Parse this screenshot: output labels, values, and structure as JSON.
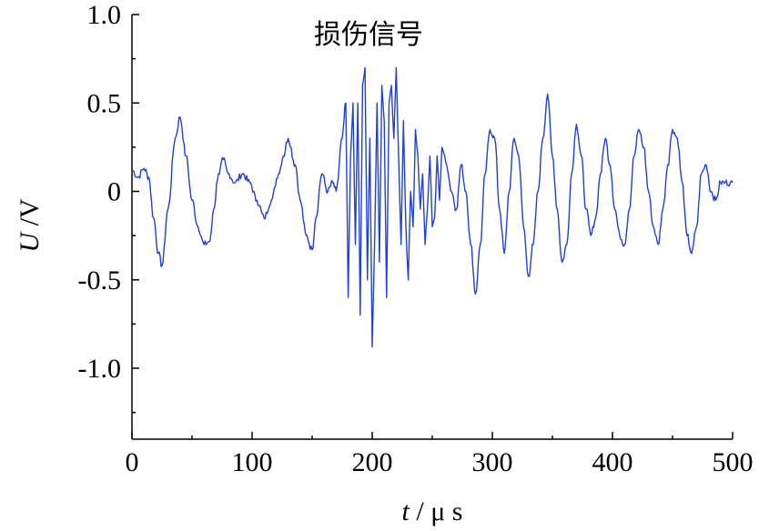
{
  "chart_data": {
    "type": "line",
    "title": "损伤信号",
    "xlabel_var": "t",
    "xlabel_unit": "μ s",
    "ylabel_var": "U",
    "ylabel_unit": "V",
    "xlim": [
      0,
      500
    ],
    "ylim": [
      -1.4,
      1.0
    ],
    "x_ticks": [
      0,
      100,
      200,
      300,
      400,
      500
    ],
    "x_tick_labels": [
      "0",
      "100",
      "200",
      "300",
      "400",
      "500"
    ],
    "y_ticks": [
      1.0,
      0.5,
      0,
      -0.5,
      -1.0
    ],
    "y_tick_labels": [
      "1.0",
      "0.5",
      "0",
      "-0.5",
      "-1.0"
    ],
    "grid": false,
    "series": [
      {
        "color": "#1f3fe0",
        "x": [
          0,
          5,
          10,
          14,
          18,
          22,
          25,
          30,
          36,
          40,
          45,
          50,
          55,
          60,
          65,
          68,
          72,
          76,
          80,
          86,
          92,
          98,
          104,
          110,
          116,
          122,
          126,
          130,
          136,
          140,
          145,
          150,
          153,
          158,
          163,
          167,
          170,
          175,
          178,
          180,
          182,
          184,
          186,
          188,
          190,
          192,
          194,
          196,
          198,
          200,
          202,
          204,
          206,
          208,
          210,
          212,
          214,
          216,
          218,
          220,
          222,
          224,
          226,
          228,
          230,
          232,
          234,
          236,
          238,
          240,
          242,
          244,
          246,
          248,
          250,
          252,
          254,
          256,
          258,
          262,
          266,
          270,
          274,
          278,
          282,
          286,
          290,
          294,
          298,
          302,
          306,
          310,
          314,
          318,
          322,
          326,
          330,
          334,
          338,
          342,
          346,
          350,
          354,
          358,
          362,
          366,
          370,
          374,
          378,
          382,
          386,
          390,
          394,
          398,
          402,
          406,
          410,
          414,
          418,
          422,
          426,
          430,
          434,
          438,
          442,
          446,
          450,
          454,
          458,
          462,
          466,
          470,
          474,
          478,
          482,
          486,
          490,
          494,
          498,
          500
        ],
        "y": [
          0.12,
          0.08,
          0.13,
          0.08,
          -0.15,
          -0.35,
          -0.42,
          -0.1,
          0.3,
          0.42,
          0.2,
          -0.05,
          -0.2,
          -0.3,
          -0.28,
          -0.1,
          0.1,
          0.18,
          0.1,
          0.05,
          0.1,
          0.05,
          -0.05,
          -0.15,
          -0.05,
          0.1,
          0.2,
          0.3,
          0.15,
          -0.05,
          -0.25,
          -0.33,
          -0.15,
          0.1,
          0.0,
          0.05,
          0.0,
          0.3,
          0.5,
          -0.6,
          0.2,
          0.5,
          -0.3,
          0.5,
          -0.7,
          0.6,
          0.7,
          -0.5,
          0.3,
          -0.88,
          -0.3,
          0.5,
          -0.4,
          0.6,
          0.4,
          -0.6,
          0.5,
          0.6,
          0.3,
          0.7,
          0.2,
          -0.3,
          0.4,
          -0.2,
          -0.5,
          0.0,
          -0.2,
          0.35,
          0.2,
          -0.1,
          0.1,
          -0.3,
          -0.1,
          0.2,
          -0.2,
          -0.15,
          0.2,
          -0.05,
          0.25,
          0.15,
          0.0,
          -0.1,
          0.15,
          0.0,
          -0.3,
          -0.58,
          -0.3,
          0.1,
          0.35,
          0.3,
          -0.1,
          -0.35,
          0.0,
          0.3,
          0.2,
          -0.2,
          -0.48,
          -0.3,
          0.0,
          0.3,
          0.55,
          0.2,
          -0.1,
          -0.4,
          -0.3,
          0.1,
          0.38,
          0.2,
          -0.1,
          -0.25,
          -0.15,
          0.1,
          0.3,
          0.15,
          -0.1,
          -0.25,
          -0.3,
          -0.1,
          0.2,
          0.35,
          0.25,
          0.0,
          -0.2,
          -0.3,
          -0.1,
          0.15,
          0.35,
          0.3,
          0.05,
          -0.25,
          -0.35,
          -0.2,
          0.1,
          0.15,
          0.0,
          -0.05,
          0.05,
          0.05,
          0.05,
          0.05
        ]
      }
    ]
  }
}
